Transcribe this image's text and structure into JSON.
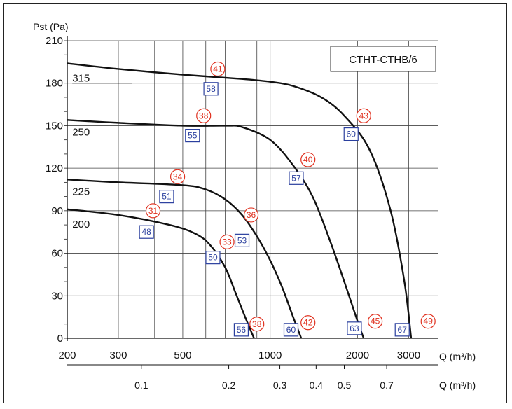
{
  "chart_data": {
    "type": "line",
    "title": "CTHT-CTHB/6",
    "ylabel": "Pst (Pa)",
    "xlabel": "Q (m³/h)",
    "xlabel_secondary": "Q (m³/h)",
    "x_scale": "log",
    "xlim": [
      200,
      3800
    ],
    "ylim": [
      0,
      210
    ],
    "x_ticks": [
      200,
      300,
      500,
      1000,
      2000,
      3000
    ],
    "x_ticks_labels": [
      "200",
      "300",
      "500",
      "1000",
      "2000",
      "3000"
    ],
    "x_minor_grid": [
      400,
      600,
      700,
      800,
      900
    ],
    "x_secondary_ticks": [
      360,
      720,
      1080,
      1440,
      1800,
      2520
    ],
    "x_secondary_labels": [
      "0.1",
      "0.2",
      "0.3",
      "0.4",
      "0.5",
      "0.7"
    ],
    "y_ticks": [
      0,
      30,
      60,
      90,
      120,
      150,
      180,
      210
    ],
    "y_ticks_labels": [
      "0",
      "30",
      "60",
      "90",
      "120",
      "150",
      "180",
      "210"
    ],
    "series": [
      {
        "name": "315",
        "label_x": 225,
        "label_y": 181,
        "x": [
          200,
          300,
          500,
          800,
          1000,
          1200,
          1500,
          1800,
          2200,
          2600,
          2900,
          3060
        ],
        "y": [
          194,
          190,
          186,
          183,
          181,
          178,
          170,
          157,
          133,
          90,
          40,
          0
        ]
      },
      {
        "name": "250",
        "label_x": 225,
        "label_y": 143,
        "x": [
          200,
          300,
          500,
          700,
          800,
          1000,
          1200,
          1400,
          1600,
          1800,
          2000,
          2100
        ],
        "y": [
          154,
          152,
          150,
          150,
          149,
          140,
          122,
          100,
          70,
          40,
          12,
          0
        ]
      },
      {
        "name": "225",
        "label_x": 225,
        "label_y": 101,
        "x": [
          200,
          300,
          500,
          600,
          700,
          800,
          900,
          1000,
          1100,
          1200,
          1280
        ],
        "y": [
          112,
          110,
          108,
          105,
          98,
          87,
          72,
          55,
          36,
          15,
          0
        ]
      },
      {
        "name": "200",
        "label_x": 225,
        "label_y": 78,
        "x": [
          200,
          300,
          450,
          550,
          620,
          700,
          760,
          820,
          880
        ],
        "y": [
          91,
          87,
          80,
          74,
          66,
          50,
          32,
          15,
          0
        ]
      }
    ],
    "annotations_red": [
      {
        "text": "41",
        "x": 660,
        "y": 190
      },
      {
        "text": "38",
        "x": 590,
        "y": 157
      },
      {
        "text": "34",
        "x": 480,
        "y": 114
      },
      {
        "text": "31",
        "x": 395,
        "y": 90
      },
      {
        "text": "33",
        "x": 710,
        "y": 68
      },
      {
        "text": "36",
        "x": 860,
        "y": 87
      },
      {
        "text": "40",
        "x": 1350,
        "y": 126
      },
      {
        "text": "43",
        "x": 2100,
        "y": 157
      },
      {
        "text": "38",
        "x": 900,
        "y": 10
      },
      {
        "text": "42",
        "x": 1350,
        "y": 11
      },
      {
        "text": "45",
        "x": 2300,
        "y": 12
      },
      {
        "text": "49",
        "x": 3500,
        "y": 12
      }
    ],
    "annotations_blue": [
      {
        "text": "58",
        "x": 625,
        "y": 176
      },
      {
        "text": "55",
        "x": 540,
        "y": 143
      },
      {
        "text": "51",
        "x": 440,
        "y": 100
      },
      {
        "text": "48",
        "x": 375,
        "y": 75
      },
      {
        "text": "50",
        "x": 635,
        "y": 57
      },
      {
        "text": "53",
        "x": 800,
        "y": 69
      },
      {
        "text": "57",
        "x": 1230,
        "y": 113
      },
      {
        "text": "60",
        "x": 1900,
        "y": 144
      },
      {
        "text": "56",
        "x": 795,
        "y": 6
      },
      {
        "text": "60",
        "x": 1180,
        "y": 6
      },
      {
        "text": "63",
        "x": 1950,
        "y": 7
      },
      {
        "text": "67",
        "x": 2850,
        "y": 6
      }
    ]
  }
}
